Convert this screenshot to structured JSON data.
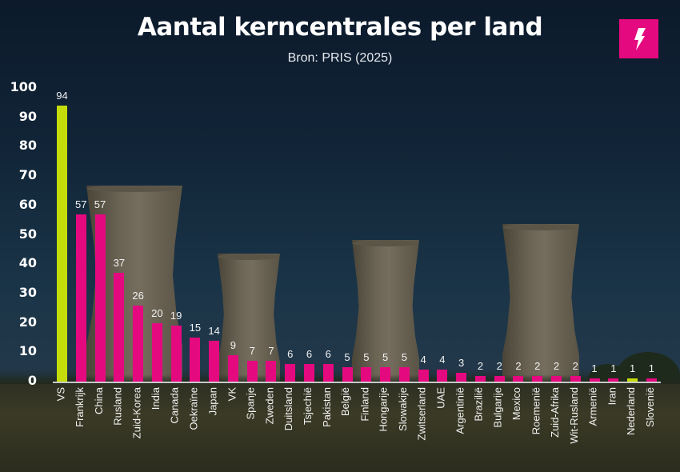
{
  "header": {
    "title": "Aantal kerncentrales per land",
    "subtitle": "Bron: PRIS (2025)",
    "logo_icon": "lightning-bolt-icon"
  },
  "colors": {
    "bar_default": "#e5097f",
    "bar_highlight": "#c4dc0a",
    "logo_bg": "#e5097f",
    "axis_line": "#c9c9c9"
  },
  "chart_data": {
    "type": "bar",
    "title": "Aantal kerncentrales per land",
    "subtitle": "Bron: PRIS (2025)",
    "xlabel": "",
    "ylabel": "",
    "ylim": [
      0,
      100
    ],
    "yticks": [
      0,
      10,
      20,
      30,
      40,
      50,
      60,
      70,
      80,
      90,
      100
    ],
    "grid": false,
    "legend": null,
    "data_labels": true,
    "highlighted": [
      "VS",
      "Nederland"
    ],
    "categories": [
      "VS",
      "Frankrijk",
      "China",
      "Rusland",
      "Zuid-Korea",
      "India",
      "Canada",
      "Oekraïne",
      "Japan",
      "VK",
      "Spanje",
      "Zweden",
      "Duitsland",
      "Tsjechië",
      "Pakistan",
      "België",
      "Finland",
      "Hongarije",
      "Slowakije",
      "Zwitserland",
      "UAE",
      "Argentinië",
      "Brazilië",
      "Bulgarije",
      "Mexico",
      "Roemenië",
      "Zuid-Afrika",
      "Wit-Rusland",
      "Armenië",
      "Iran",
      "Nederland",
      "Slovenië"
    ],
    "values": [
      94,
      57,
      57,
      37,
      26,
      20,
      19,
      15,
      14,
      9,
      7,
      7,
      6,
      6,
      6,
      5,
      5,
      5,
      5,
      4,
      4,
      3,
      2,
      2,
      2,
      2,
      2,
      2,
      1,
      1,
      1,
      1
    ]
  }
}
